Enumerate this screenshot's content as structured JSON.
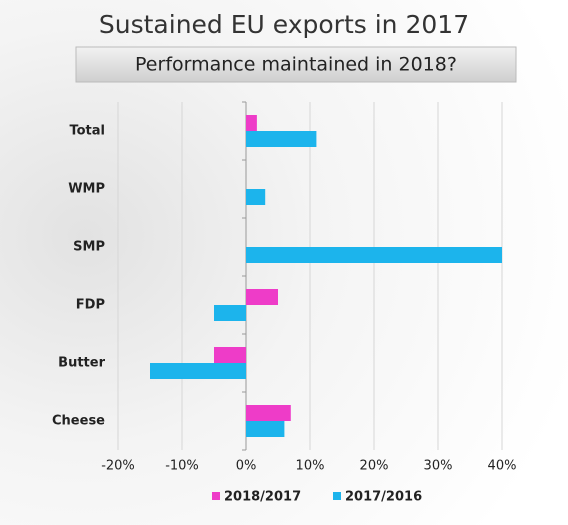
{
  "chart_data": {
    "type": "bar",
    "orientation": "horizontal",
    "title": "Sustained EU exports in 2017",
    "subtitle": "Performance maintained in 2018?",
    "categories": [
      "Total",
      "WMP",
      "SMP",
      "FDP",
      "Butter",
      "Cheese"
    ],
    "series": [
      {
        "name": "2018/2017",
        "color": "#ee3cc8",
        "values": [
          1.7,
          null,
          null,
          5,
          -5,
          7
        ]
      },
      {
        "name": "2017/2016",
        "color": "#1cb4ec",
        "values": [
          11,
          3,
          40,
          -5,
          -15,
          6
        ]
      }
    ],
    "xlim": [
      -20,
      40
    ],
    "xticks": [
      {
        "value": -20,
        "label": "-20%"
      },
      {
        "value": -10,
        "label": "-10%"
      },
      {
        "value": 0,
        "label": "0%"
      },
      {
        "value": 10,
        "label": "10%"
      },
      {
        "value": 20,
        "label": "20%"
      },
      {
        "value": 30,
        "label": "30%"
      },
      {
        "value": 40,
        "label": "40%"
      }
    ],
    "grid": true,
    "legend": "bottom"
  }
}
